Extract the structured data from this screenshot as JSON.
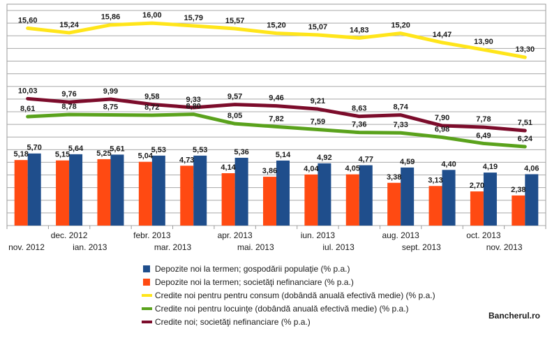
{
  "chart_data": {
    "type": "bar",
    "categories": [
      "nov. 2012",
      "dec. 2012",
      "ian. 2013",
      "febr. 2013",
      "mar. 2013",
      "apr. 2013",
      "mai. 2013",
      "iun. 2013",
      "iul. 2013",
      "aug. 2013",
      "sept. 2013",
      "oct. 2013",
      "nov. 2013"
    ],
    "series": [
      {
        "name": "Depozite noi la termen; gospodării populaţie (% p.a.)",
        "kind": "bar",
        "color": "#1f4e8c",
        "values": [
          5.7,
          5.64,
          5.61,
          5.53,
          5.53,
          5.36,
          5.14,
          4.92,
          4.77,
          4.59,
          4.4,
          4.19,
          4.06
        ],
        "labels": [
          "5,70",
          "5,64",
          "5,61",
          "5,53",
          "5,53",
          "5,36",
          "5,14",
          "4,92",
          "4,77",
          "4,59",
          "4,40",
          "4,19",
          "4,06"
        ]
      },
      {
        "name": "Depozite noi la termen; societăţi nefinanciare (% p.a.)",
        "kind": "bar",
        "color": "#ff4a12",
        "values": [
          5.18,
          5.15,
          5.25,
          5.04,
          4.73,
          4.14,
          3.86,
          4.04,
          4.05,
          3.38,
          3.13,
          2.7,
          2.38
        ],
        "labels": [
          "5,18",
          "5,15",
          "5,25",
          "5,04",
          "4,73",
          "4,14",
          "3,86",
          "4,04",
          "4,05",
          "3,38",
          "3,13",
          "2,70",
          "2,38"
        ]
      },
      {
        "name": "Credite noi pentru pentru consum (dobândă anuală efectivă medie) (% p.a.)",
        "kind": "line",
        "color": "#ffe51a",
        "values": [
          15.6,
          15.24,
          15.86,
          16.0,
          15.79,
          15.57,
          15.2,
          15.07,
          14.83,
          15.2,
          14.47,
          13.9,
          13.3
        ],
        "labels": [
          "15,60",
          "15,24",
          "15,86",
          "16,00",
          "15,79",
          "15,57",
          "15,20",
          "15,07",
          "14,83",
          "15,20",
          "14,47",
          "13,90",
          "13,30"
        ]
      },
      {
        "name": "Credite noi pentru locuinţe (dobândă anuală efectivă medie) (% p.a.)",
        "kind": "line",
        "color": "#5aa21c",
        "values": [
          8.61,
          8.78,
          8.75,
          8.72,
          8.8,
          8.05,
          7.82,
          7.59,
          7.36,
          7.33,
          6.98,
          6.49,
          6.24
        ],
        "labels": [
          "8,61",
          "8,78",
          "8,75",
          "8,72",
          "8,80",
          "8,05",
          "7,82",
          "7,59",
          "7,36",
          "7,33",
          "6,98",
          "6,49",
          "6,24"
        ]
      },
      {
        "name": "Credite noi; societăţi nefinanciare (% p.a.)",
        "kind": "line",
        "color": "#7c0c2b",
        "values": [
          10.03,
          9.76,
          9.99,
          9.58,
          9.33,
          9.57,
          9.46,
          9.21,
          8.63,
          8.74,
          7.9,
          7.78,
          7.51
        ],
        "labels": [
          "10,03",
          "9,76",
          "9,99",
          "9,58",
          "9,33",
          "9,57",
          "9,46",
          "9,21",
          "8,63",
          "8,74",
          "7,90",
          "7,78",
          "7,51"
        ]
      }
    ],
    "ylim": [
      0,
      17.5
    ],
    "grid": true,
    "legend_position": "bottom",
    "watermark": "Bancherul.ro"
  }
}
